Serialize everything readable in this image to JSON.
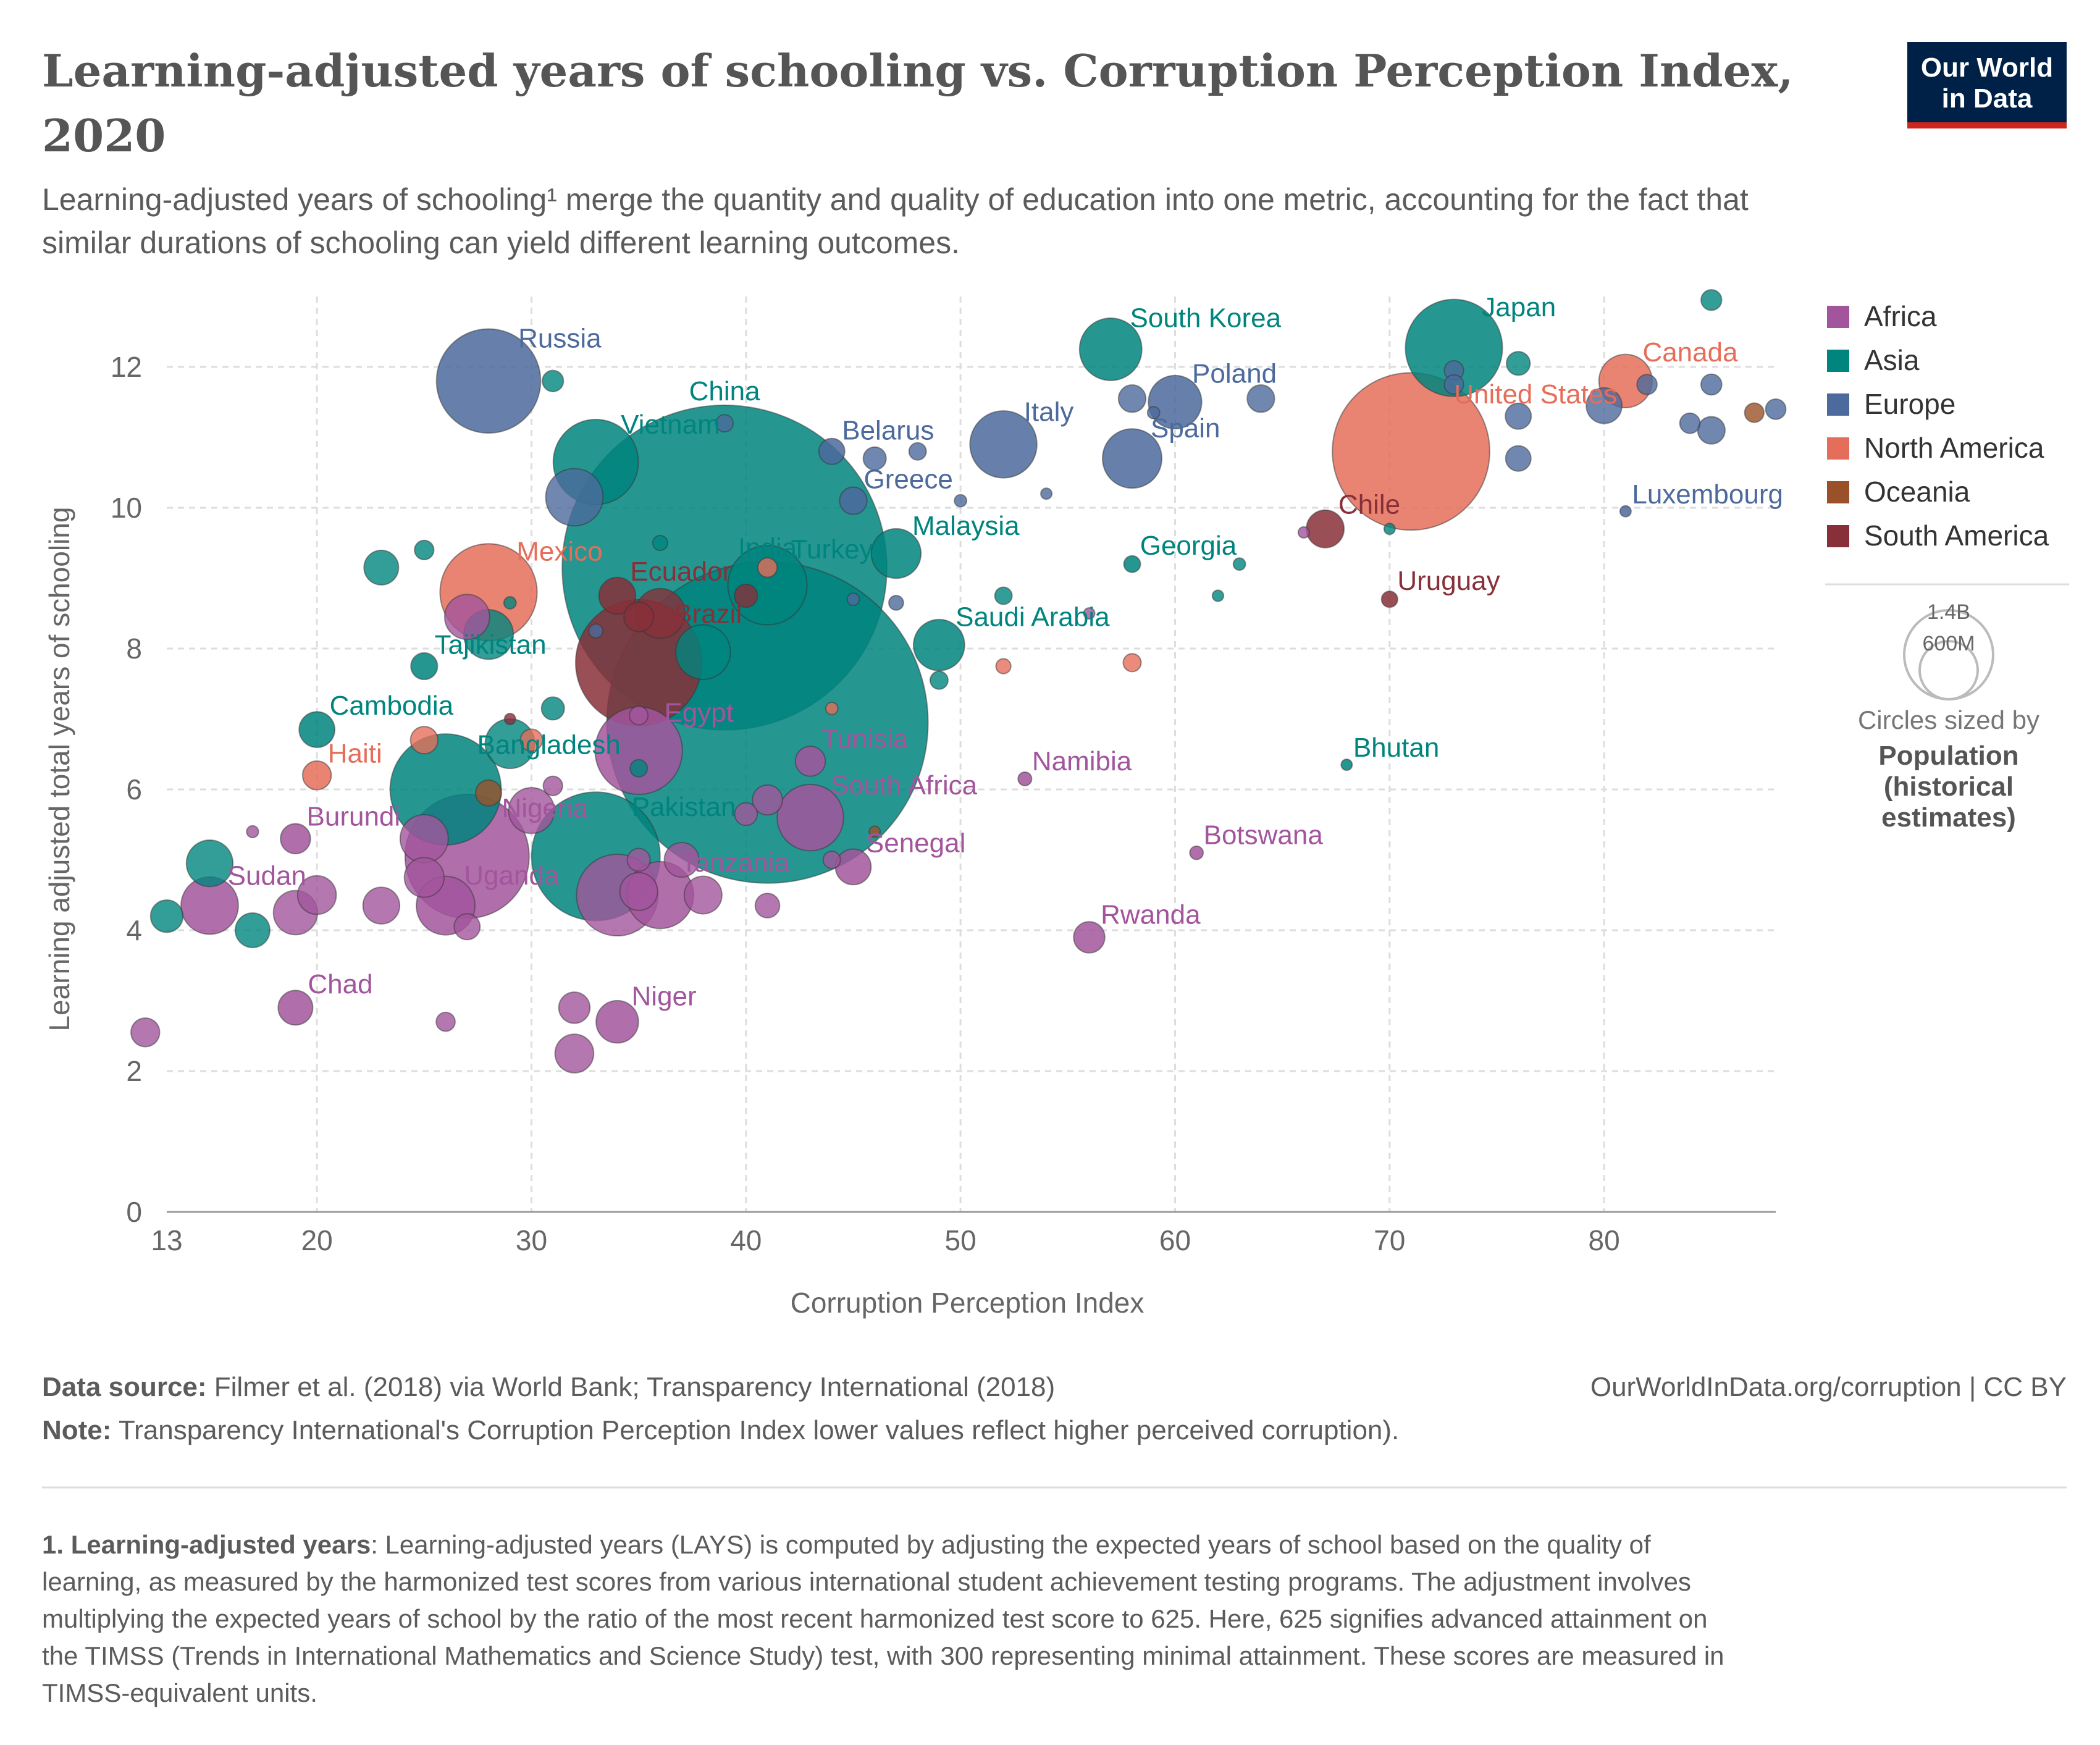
{
  "header": {
    "title_line1": "Learning-adjusted years of schooling vs. Corruption Perception Index,",
    "title_line2": "2020",
    "subtitle_line1": "Learning-adjusted years of schooling¹ merge the quantity and quality of education into one metric, accounting for the fact that",
    "subtitle_line2": "similar durations of schooling can yield different learning outcomes.",
    "logo_line1": "Our World",
    "logo_line2": "in Data"
  },
  "colors": {
    "Africa": "#a2559c",
    "Asia": "#00847e",
    "Europe": "#4c6a9c",
    "North America": "#e56e5a",
    "Oceania": "#9a5129",
    "South America": "#883039",
    "logo_bg": "#002147",
    "logo_bar": "#ce261e"
  },
  "legend": {
    "items": [
      "Africa",
      "Asia",
      "Europe",
      "North America",
      "Oceania",
      "South America"
    ],
    "size_big": "1.4B",
    "size_small": "600M",
    "size_note": "Circles sized by",
    "size_var_line1": "Population",
    "size_var_line2": "(historical",
    "size_var_line3": "estimates)"
  },
  "chart_data": {
    "type": "scatter",
    "xlabel": "Corruption Perception Index",
    "ylabel": "Learning adjusted total years of schooling",
    "xlim": [
      13,
      88
    ],
    "ylim": [
      0,
      13
    ],
    "xticks": [
      13,
      20,
      30,
      40,
      50,
      60,
      70,
      80
    ],
    "yticks": [
      0,
      2,
      4,
      6,
      8,
      10,
      12
    ],
    "grid": true,
    "legend_position": "right",
    "size_variable": "Population (historical estimates)",
    "points": [
      {
        "label": "Russia",
        "region": "Europe",
        "x": 28,
        "y": 11.8,
        "pop": 145
      },
      {
        "label": "South Korea",
        "region": "Asia",
        "x": 57,
        "y": 12.25,
        "pop": 52
      },
      {
        "label": "Japan",
        "region": "Asia",
        "x": 73,
        "y": 12.27,
        "pop": 126
      },
      {
        "label": "Canada",
        "region": "North America",
        "x": 81,
        "y": 11.8,
        "pop": 38
      },
      {
        "label": "Poland",
        "region": "Europe",
        "x": 60,
        "y": 11.5,
        "pop": 38
      },
      {
        "label": "Vietnam",
        "region": "Asia",
        "x": 33,
        "y": 10.65,
        "pop": 97
      },
      {
        "label": "Belarus",
        "region": "Europe",
        "x": 44,
        "y": 10.8,
        "pop": 9
      },
      {
        "label": "Italy",
        "region": "Europe",
        "x": 52,
        "y": 10.9,
        "pop": 60
      },
      {
        "label": "United States",
        "region": "North America",
        "x": 71,
        "y": 10.8,
        "pop": 331
      },
      {
        "label": "Spain",
        "region": "Europe",
        "x": 58,
        "y": 10.7,
        "pop": 47
      },
      {
        "label": "Greece",
        "region": "Europe",
        "x": 45,
        "y": 10.1,
        "pop": 10
      },
      {
        "label": "China",
        "region": "Asia",
        "x": 39,
        "y": 9.15,
        "pop": 1410
      },
      {
        "label": "Luxembourg",
        "region": "Europe",
        "x": 81,
        "y": 9.95,
        "pop": 0.6
      },
      {
        "label": "Chile",
        "region": "South America",
        "x": 67,
        "y": 9.7,
        "pop": 19
      },
      {
        "label": "Malaysia",
        "region": "Asia",
        "x": 47,
        "y": 9.35,
        "pop": 33
      },
      {
        "label": "Turkey",
        "region": "Asia",
        "x": 41,
        "y": 8.9,
        "pop": 84
      },
      {
        "label": "Georgia",
        "region": "Asia",
        "x": 58,
        "y": 9.2,
        "pop": 3.7
      },
      {
        "label": "Mexico",
        "region": "North America",
        "x": 28,
        "y": 8.8,
        "pop": 126
      },
      {
        "label": "Ecuador",
        "region": "South America",
        "x": 34,
        "y": 8.75,
        "pop": 18
      },
      {
        "label": "Uruguay",
        "region": "South America",
        "x": 70,
        "y": 8.7,
        "pop": 3.5
      },
      {
        "label": "Saudi Arabia",
        "region": "Asia",
        "x": 49,
        "y": 8.05,
        "pop": 35
      },
      {
        "label": "Brazil",
        "region": "South America",
        "x": 35,
        "y": 7.8,
        "pop": 213
      },
      {
        "label": "Tajikistan",
        "region": "Asia",
        "x": 25,
        "y": 7.75,
        "pop": 9.5
      },
      {
        "label": "India",
        "region": "Asia",
        "x": 41,
        "y": 6.95,
        "pop": 1380
      },
      {
        "label": "Cambodia",
        "region": "Asia",
        "x": 20,
        "y": 6.85,
        "pop": 17
      },
      {
        "label": "Egypt",
        "region": "Africa",
        "x": 35,
        "y": 6.55,
        "pop": 102
      },
      {
        "label": "Tunisia",
        "region": "Africa",
        "x": 43,
        "y": 6.4,
        "pop": 12
      },
      {
        "label": "Bhutan",
        "region": "Asia",
        "x": 68,
        "y": 6.35,
        "pop": 0.8
      },
      {
        "label": "Haiti",
        "region": "North America",
        "x": 20,
        "y": 6.2,
        "pop": 11
      },
      {
        "label": "Namibia",
        "region": "Africa",
        "x": 53,
        "y": 6.15,
        "pop": 2.5
      },
      {
        "label": "Bangladesh",
        "region": "Asia",
        "x": 26,
        "y": 6.0,
        "pop": 165
      },
      {
        "label": "South Africa",
        "region": "Africa",
        "x": 43,
        "y": 5.6,
        "pop": 59
      },
      {
        "label": "Burundi",
        "region": "Africa",
        "x": 19,
        "y": 5.3,
        "pop": 12
      },
      {
        "label": "Nigeria",
        "region": "Africa",
        "x": 27,
        "y": 5.05,
        "pop": 206
      },
      {
        "label": "Pakistan",
        "region": "Asia",
        "x": 33,
        "y": 5.05,
        "pop": 221
      },
      {
        "label": "Senegal",
        "region": "Africa",
        "x": 45,
        "y": 4.9,
        "pop": 17
      },
      {
        "label": "Botswana",
        "region": "Africa",
        "x": 61,
        "y": 5.1,
        "pop": 2.4
      },
      {
        "label": "Tanzania",
        "region": "Africa",
        "x": 36,
        "y": 4.5,
        "pop": 60
      },
      {
        "label": "Sudan",
        "region": "Africa",
        "x": 15,
        "y": 4.35,
        "pop": 44
      },
      {
        "label": "Uganda",
        "region": "Africa",
        "x": 26,
        "y": 4.35,
        "pop": 46
      },
      {
        "label": "Rwanda",
        "region": "Africa",
        "x": 56,
        "y": 3.9,
        "pop": 13
      },
      {
        "label": "Chad",
        "region": "Africa",
        "x": 19,
        "y": 2.9,
        "pop": 16
      },
      {
        "label": "Niger",
        "region": "Africa",
        "x": 34,
        "y": 2.7,
        "pop": 24
      },
      {
        "label": "",
        "region": "Asia",
        "x": 85,
        "y": 12.95,
        "pop": 5.7
      },
      {
        "label": "",
        "region": "Asia",
        "x": 31,
        "y": 11.8,
        "pop": 6
      },
      {
        "label": "",
        "region": "Asia",
        "x": 76,
        "y": 12.05,
        "pop": 7.5
      },
      {
        "label": "",
        "region": "Europe",
        "x": 39,
        "y": 11.2,
        "pop": 4
      },
      {
        "label": "",
        "region": "Europe",
        "x": 58,
        "y": 11.55,
        "pop": 10
      },
      {
        "label": "",
        "region": "Europe",
        "x": 59,
        "y": 11.35,
        "pop": 2
      },
      {
        "label": "",
        "region": "Europe",
        "x": 64,
        "y": 11.55,
        "pop": 10
      },
      {
        "label": "",
        "region": "Europe",
        "x": 73,
        "y": 11.95,
        "pop": 5
      },
      {
        "label": "",
        "region": "Europe",
        "x": 73,
        "y": 11.75,
        "pop": 5
      },
      {
        "label": "",
        "region": "Europe",
        "x": 76,
        "y": 11.3,
        "pop": 9
      },
      {
        "label": "",
        "region": "Europe",
        "x": 80,
        "y": 11.45,
        "pop": 17
      },
      {
        "label": "",
        "region": "Europe",
        "x": 82,
        "y": 11.75,
        "pop": 5.4
      },
      {
        "label": "",
        "region": "Europe",
        "x": 84,
        "y": 11.2,
        "pop": 5.5
      },
      {
        "label": "",
        "region": "Europe",
        "x": 85,
        "y": 11.75,
        "pop": 5.8
      },
      {
        "label": "",
        "region": "Europe",
        "x": 85,
        "y": 11.1,
        "pop": 10
      },
      {
        "label": "",
        "region": "Oceania",
        "x": 87,
        "y": 11.35,
        "pop": 5
      },
      {
        "label": "",
        "region": "Europe",
        "x": 88,
        "y": 11.4,
        "pop": 5.5
      },
      {
        "label": "",
        "region": "Europe",
        "x": 46,
        "y": 10.7,
        "pop": 7
      },
      {
        "label": "",
        "region": "Europe",
        "x": 48,
        "y": 10.8,
        "pop": 4
      },
      {
        "label": "",
        "region": "Europe",
        "x": 50,
        "y": 10.1,
        "pop": 2
      },
      {
        "label": "",
        "region": "Europe",
        "x": 54,
        "y": 10.2,
        "pop": 1.3
      },
      {
        "label": "",
        "region": "Europe",
        "x": 32,
        "y": 10.15,
        "pop": 44
      },
      {
        "label": "",
        "region": "Europe",
        "x": 76,
        "y": 10.7,
        "pop": 8.6
      },
      {
        "label": "",
        "region": "Africa",
        "x": 66,
        "y": 9.65,
        "pop": 1.3
      },
      {
        "label": "",
        "region": "Asia",
        "x": 70,
        "y": 9.7,
        "pop": 0.5
      },
      {
        "label": "",
        "region": "Asia",
        "x": 23,
        "y": 9.15,
        "pop": 16
      },
      {
        "label": "",
        "region": "Asia",
        "x": 25,
        "y": 9.4,
        "pop": 5
      },
      {
        "label": "",
        "region": "Asia",
        "x": 36,
        "y": 9.5,
        "pop": 3
      },
      {
        "label": "",
        "region": "Asia",
        "x": 29,
        "y": 8.65,
        "pop": 2
      },
      {
        "label": "",
        "region": "Asia",
        "x": 62,
        "y": 8.75,
        "pop": 1.7
      },
      {
        "label": "",
        "region": "Asia",
        "x": 63,
        "y": 9.2,
        "pop": 2
      },
      {
        "label": "",
        "region": "Asia",
        "x": 52,
        "y": 8.75,
        "pop": 4
      },
      {
        "label": "",
        "region": "Asia",
        "x": 38,
        "y": 7.95,
        "pop": 40
      },
      {
        "label": "",
        "region": "Asia",
        "x": 49,
        "y": 7.55,
        "pop": 4.3
      },
      {
        "label": "",
        "region": "Asia",
        "x": 31,
        "y": 7.15,
        "pop": 7
      },
      {
        "label": "",
        "region": "Asia",
        "x": 29,
        "y": 6.65,
        "pop": 33
      },
      {
        "label": "",
        "region": "Asia",
        "x": 35,
        "y": 6.3,
        "pop": 4
      },
      {
        "label": "",
        "region": "Asia",
        "x": 15,
        "y": 4.95,
        "pop": 29
      },
      {
        "label": "",
        "region": "Asia",
        "x": 13,
        "y": 4.2,
        "pop": 14
      },
      {
        "label": "",
        "region": "Asia",
        "x": 17,
        "y": 4.0,
        "pop": 16
      },
      {
        "label": "",
        "region": "Asia",
        "x": 28,
        "y": 8.2,
        "pop": 33
      },
      {
        "label": "",
        "region": "Europe",
        "x": 45,
        "y": 8.7,
        "pop": 2
      },
      {
        "label": "",
        "region": "Europe",
        "x": 47,
        "y": 8.65,
        "pop": 2.9
      },
      {
        "label": "",
        "region": "Europe",
        "x": 33,
        "y": 8.25,
        "pop": 2.6
      },
      {
        "label": "",
        "region": "North America",
        "x": 41,
        "y": 9.15,
        "pop": 5
      },
      {
        "label": "",
        "region": "North America",
        "x": 52,
        "y": 7.75,
        "pop": 3
      },
      {
        "label": "",
        "region": "North America",
        "x": 58,
        "y": 7.8,
        "pop": 4.3
      },
      {
        "label": "",
        "region": "North America",
        "x": 44,
        "y": 7.15,
        "pop": 2
      },
      {
        "label": "",
        "region": "North America",
        "x": 25,
        "y": 6.7,
        "pop": 10
      },
      {
        "label": "",
        "region": "North America",
        "x": 30,
        "y": 6.7,
        "pop": 6.5
      },
      {
        "label": "",
        "region": "South America",
        "x": 40,
        "y": 8.75,
        "pop": 7.1
      },
      {
        "label": "",
        "region": "South America",
        "x": 36,
        "y": 8.5,
        "pop": 33
      },
      {
        "label": "",
        "region": "South America",
        "x": 35,
        "y": 8.45,
        "pop": 11.7
      },
      {
        "label": "",
        "region": "South America",
        "x": 29,
        "y": 7.0,
        "pop": 0.8
      },
      {
        "label": "",
        "region": "Oceania",
        "x": 28,
        "y": 5.95,
        "pop": 9
      },
      {
        "label": "",
        "region": "Oceania",
        "x": 46,
        "y": 5.4,
        "pop": 0.9
      },
      {
        "label": "",
        "region": "Africa",
        "x": 27,
        "y": 8.45,
        "pop": 27
      },
      {
        "label": "",
        "region": "Africa",
        "x": 35,
        "y": 7.05,
        "pop": 4.6
      },
      {
        "label": "",
        "region": "Africa",
        "x": 40,
        "y": 5.65,
        "pop": 6.9
      },
      {
        "label": "",
        "region": "Africa",
        "x": 41,
        "y": 5.85,
        "pop": 12
      },
      {
        "label": "",
        "region": "Africa",
        "x": 41,
        "y": 4.35,
        "pop": 8
      },
      {
        "label": "",
        "region": "Africa",
        "x": 44,
        "y": 5.0,
        "pop": 4
      },
      {
        "label": "",
        "region": "Africa",
        "x": 35,
        "y": 5.0,
        "pop": 7
      },
      {
        "label": "",
        "region": "Africa",
        "x": 37,
        "y": 5.0,
        "pop": 16
      },
      {
        "label": "",
        "region": "Africa",
        "x": 38,
        "y": 4.5,
        "pop": 19
      },
      {
        "label": "",
        "region": "Africa",
        "x": 34,
        "y": 4.5,
        "pop": 89
      },
      {
        "label": "",
        "region": "Africa",
        "x": 35,
        "y": 4.55,
        "pop": 19
      },
      {
        "label": "",
        "region": "Africa",
        "x": 31,
        "y": 6.05,
        "pop": 5
      },
      {
        "label": "",
        "region": "Africa",
        "x": 30,
        "y": 5.7,
        "pop": 28
      },
      {
        "label": "",
        "region": "Africa",
        "x": 25,
        "y": 5.3,
        "pop": 31
      },
      {
        "label": "",
        "region": "Africa",
        "x": 25,
        "y": 4.75,
        "pop": 21
      },
      {
        "label": "",
        "region": "Africa",
        "x": 27,
        "y": 4.05,
        "pop": 9
      },
      {
        "label": "",
        "region": "Africa",
        "x": 23,
        "y": 4.35,
        "pop": 18
      },
      {
        "label": "",
        "region": "Africa",
        "x": 20,
        "y": 4.5,
        "pop": 20
      },
      {
        "label": "",
        "region": "Africa",
        "x": 19,
        "y": 4.25,
        "pop": 26
      },
      {
        "label": "",
        "region": "Africa",
        "x": 17,
        "y": 5.4,
        "pop": 1.9
      },
      {
        "label": "",
        "region": "Africa",
        "x": 12,
        "y": 2.55,
        "pop": 11
      },
      {
        "label": "",
        "region": "Africa",
        "x": 26,
        "y": 2.7,
        "pop": 4.8
      },
      {
        "label": "",
        "region": "Africa",
        "x": 32,
        "y": 2.9,
        "pop": 13
      },
      {
        "label": "",
        "region": "Africa",
        "x": 32,
        "y": 2.25,
        "pop": 20
      },
      {
        "label": "",
        "region": "Africa",
        "x": 56,
        "y": 8.5,
        "pop": 1.2
      }
    ]
  },
  "footer": {
    "source_label": "Data source:",
    "source_text": "Filmer et al. (2018) via World Bank; Transparency International (2018)",
    "url_text": "OurWorldInData.org/corruption | CC BY",
    "note_label": "Note:",
    "note_text": "Transparency International's Corruption Perception Index lower values reflect higher perceived corruption).",
    "footnote_label": "1. Learning-adjusted years",
    "footnote_line1": ": Learning-adjusted years (LAYS) is computed by adjusting the expected years of school based on the quality of",
    "footnote_line2": "learning, as measured by the harmonized test scores from various international student achievement testing programs. The adjustment involves",
    "footnote_line3": "multiplying the expected years of school by the ratio of the most recent harmonized test score to 625. Here, 625 signifies advanced attainment on",
    "footnote_line4": "the TIMSS (Trends in International Mathematics and Science Study) test, with 300 representing minimal attainment. These scores are measured in",
    "footnote_line5": "TIMSS-equivalent units."
  }
}
